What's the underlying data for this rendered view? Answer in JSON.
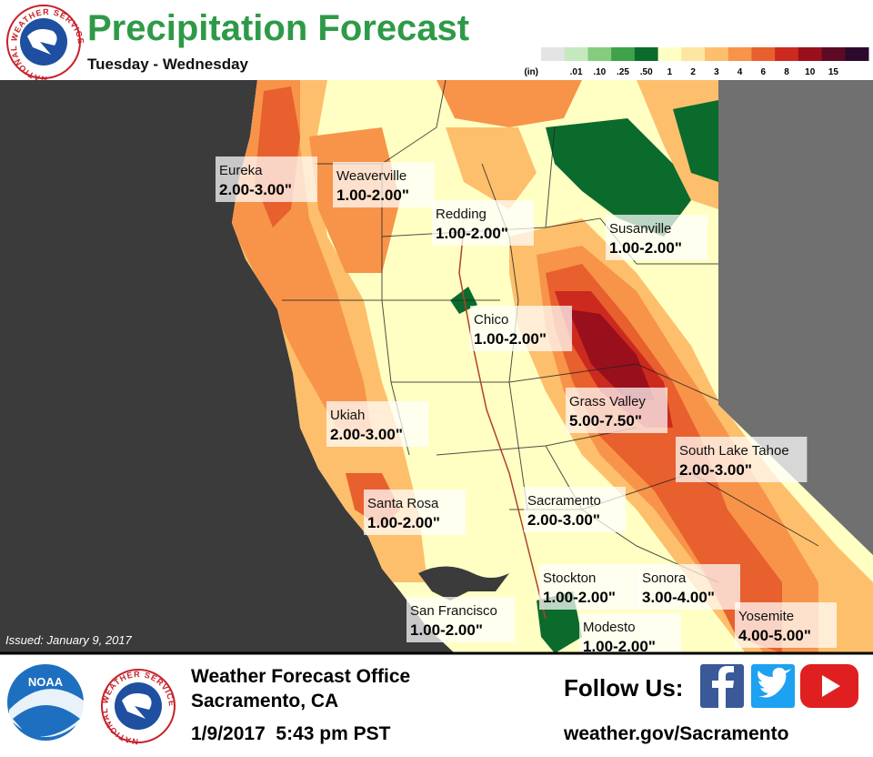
{
  "header": {
    "title": "Precipitation Forecast",
    "subtitle": "Tuesday - Wednesday",
    "logo_text": "NATIONAL WEATHER SERVICE"
  },
  "legend": {
    "unit": "(in)",
    "labels": [
      ".01",
      ".10",
      ".25",
      ".50",
      "1",
      "2",
      "3",
      "4",
      "6",
      "8",
      "10",
      "15"
    ],
    "colors": [
      "#e4e4e4",
      "#c6e8bf",
      "#86cc7e",
      "#3fa24a",
      "#0b6b2c",
      "#ffffc4",
      "#fde6a0",
      "#fdbf6c",
      "#f7944a",
      "#e8602e",
      "#cc2a1e",
      "#99101c",
      "#5e0a24",
      "#2c0a2e"
    ]
  },
  "map": {
    "issued": "Issued: January 9, 2017",
    "cities": [
      {
        "name": "Eureka",
        "amount": "2.00-3.00\""
      },
      {
        "name": "Weaverville",
        "amount": "1.00-2.00\""
      },
      {
        "name": "Redding",
        "amount": "1.00-2.00\""
      },
      {
        "name": "Susanville",
        "amount": "1.00-2.00\""
      },
      {
        "name": "Chico",
        "amount": "1.00-2.00\""
      },
      {
        "name": "Grass Valley",
        "amount": "5.00-7.50\""
      },
      {
        "name": "Ukiah",
        "amount": "2.00-3.00\""
      },
      {
        "name": "South Lake Tahoe",
        "amount": "2.00-3.00\""
      },
      {
        "name": "Santa Rosa",
        "amount": "1.00-2.00\""
      },
      {
        "name": "Sacramento",
        "amount": "2.00-3.00\""
      },
      {
        "name": "Stockton",
        "amount": "1.00-2.00\""
      },
      {
        "name": "Sonora",
        "amount": "3.00-4.00\""
      },
      {
        "name": "San Francisco",
        "amount": "1.00-2.00\""
      },
      {
        "name": "Modesto",
        "amount": "1.00-2.00\""
      },
      {
        "name": "Yosemite",
        "amount": "4.00-5.00\""
      }
    ]
  },
  "footer": {
    "noaa": "NOAA",
    "office": "Weather Forecast Office",
    "location": "Sacramento, CA",
    "datetime": "1/9/2017  5:43 pm PST",
    "follow": "Follow Us:",
    "url": "weather.gov/Sacramento"
  }
}
